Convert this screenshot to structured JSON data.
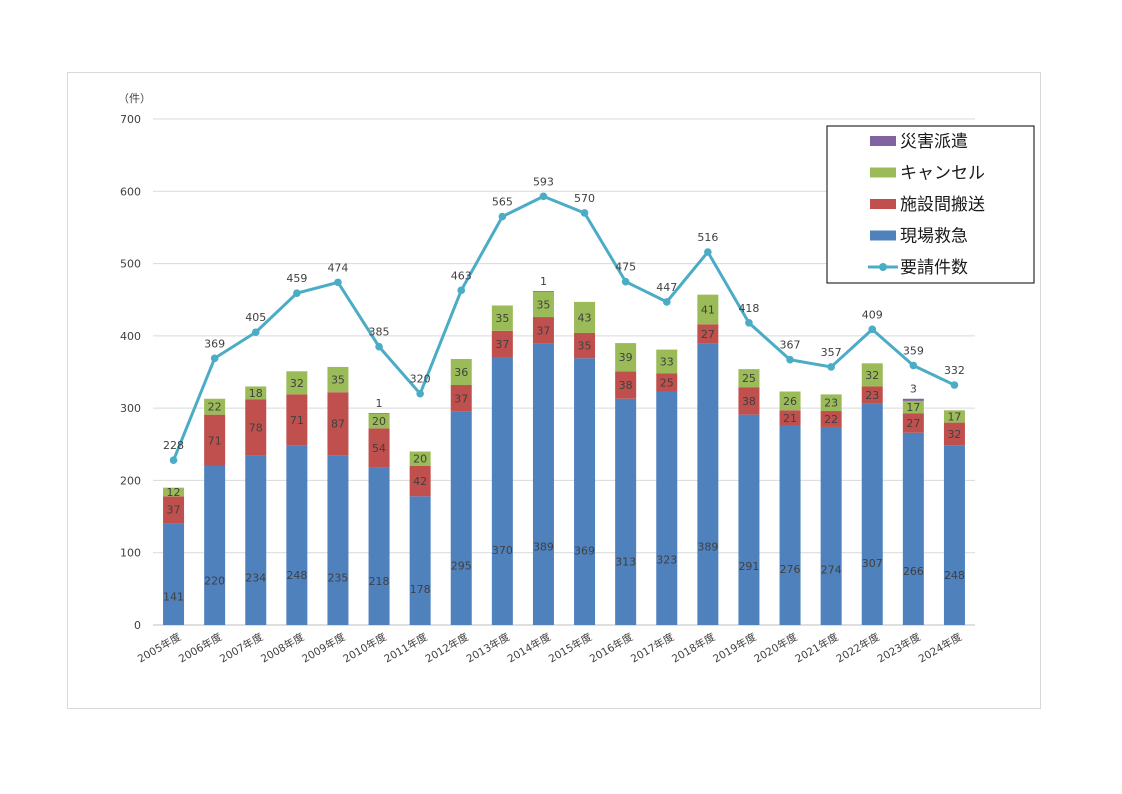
{
  "chart_data": {
    "type": "bar",
    "stacked": true,
    "y_unit_label": "（件）",
    "ylim": [
      0,
      700
    ],
    "yticks": [
      0,
      100,
      200,
      300,
      400,
      500,
      600,
      700
    ],
    "grid": true,
    "legend_position": "top-right",
    "categories": [
      "2005年度",
      "2006年度",
      "2007年度",
      "2008年度",
      "2009年度",
      "2010年度",
      "2011年度",
      "2012年度",
      "2013年度",
      "2014年度",
      "2015年度",
      "2016年度",
      "2017年度",
      "2018年度",
      "2019年度",
      "2020年度",
      "2021年度",
      "2022年度",
      "2023年度",
      "2024年度"
    ],
    "series": [
      {
        "name": "現場救急",
        "kind": "bar",
        "color": "#4F81BD",
        "values": [
          141,
          220,
          234,
          248,
          235,
          218,
          178,
          295,
          370,
          389,
          369,
          313,
          323,
          389,
          291,
          276,
          274,
          307,
          266,
          248
        ]
      },
      {
        "name": "施設間搬送",
        "kind": "bar",
        "color": "#C0504D",
        "values": [
          37,
          71,
          78,
          71,
          87,
          54,
          42,
          37,
          37,
          37,
          35,
          38,
          25,
          27,
          38,
          21,
          22,
          23,
          27,
          32
        ]
      },
      {
        "name": "キャンセル",
        "kind": "bar",
        "color": "#9BBB59",
        "values": [
          12,
          22,
          18,
          32,
          35,
          20,
          20,
          36,
          35,
          35,
          43,
          39,
          33,
          41,
          25,
          26,
          23,
          32,
          17,
          17
        ]
      },
      {
        "name": "災害派遣",
        "kind": "bar",
        "color": "#8064A2",
        "values": [
          0,
          0,
          0,
          0,
          0,
          1,
          0,
          0,
          0,
          1,
          0,
          0,
          0,
          0,
          0,
          0,
          0,
          0,
          3,
          0
        ]
      },
      {
        "name": "要請件数",
        "kind": "line",
        "color": "#4BACC6",
        "values": [
          228,
          369,
          405,
          459,
          474,
          385,
          320,
          463,
          565,
          593,
          570,
          475,
          447,
          516,
          418,
          367,
          357,
          409,
          359,
          332
        ]
      }
    ],
    "legend_order": [
      "災害派遣",
      "キャンセル",
      "施設間搬送",
      "現場救急",
      "要請件数"
    ]
  }
}
